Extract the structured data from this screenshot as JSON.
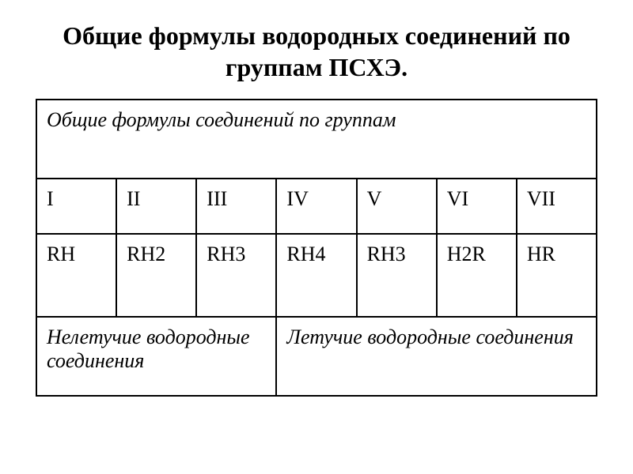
{
  "title": "Общие формулы водородных соединений по группам ПСХЭ.",
  "table": {
    "header": "Общие формулы соединений по группам",
    "groups": [
      "I",
      "II",
      "III",
      "IV",
      "V",
      "VI",
      "VII"
    ],
    "formulas": [
      "RH",
      "RH2",
      "RH3",
      "RH4",
      "RH3",
      "H2R",
      "HR"
    ],
    "classification": {
      "nonvolatile": "Нелетучие водородные соединения",
      "volatile": "Летучие водородные соединения"
    }
  },
  "styling": {
    "border_color": "#000000",
    "border_width": 2,
    "background_color": "#ffffff",
    "text_color": "#000000",
    "title_fontsize": 32,
    "cell_fontsize": 26,
    "font_family": "Times New Roman",
    "column_count": 7,
    "nonvolatile_colspan": 3,
    "volatile_colspan": 4
  }
}
